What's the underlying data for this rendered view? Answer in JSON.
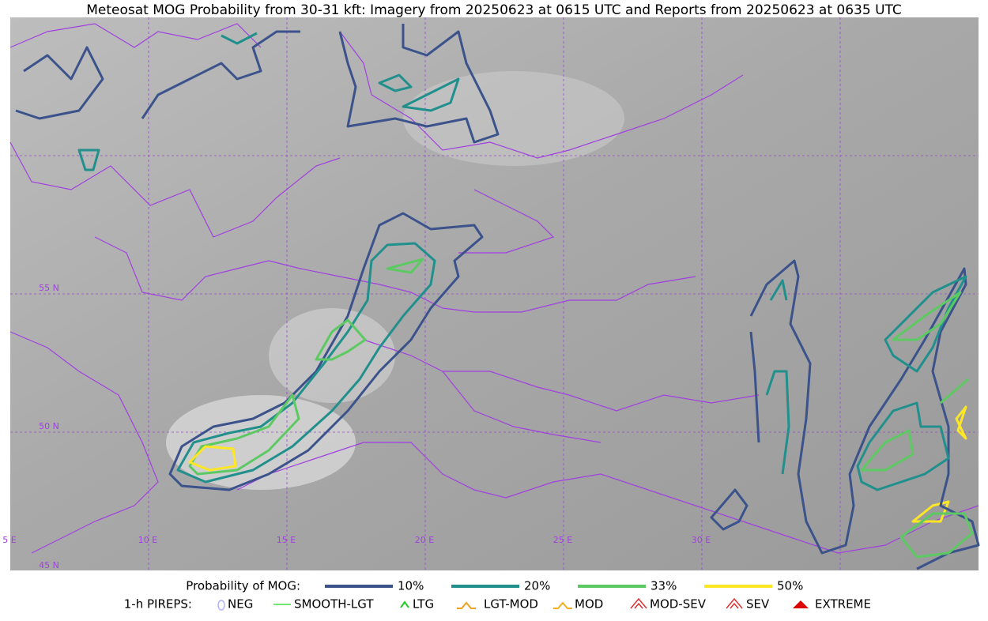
{
  "title": "Meteosat MOG Probability from 30-31 kft: Imagery from 20250623 at 0615 UTC and Reports from 20250623 at 0635 UTC",
  "map": {
    "lat_labels": [
      "55 N",
      "50 N",
      "45 N"
    ],
    "lon_labels": [
      "5 E",
      "10 E",
      "15 E",
      "20 E",
      "25 E",
      "30 E"
    ]
  },
  "legend": {
    "probability_title": "Probability of MOG:",
    "levels": [
      {
        "label": "10%",
        "color": "#3b528b"
      },
      {
        "label": "20%",
        "color": "#21908d"
      },
      {
        "label": "33%",
        "color": "#5dc963"
      },
      {
        "label": "50%",
        "color": "#fde725"
      }
    ],
    "pireps_title": "1-h PIREPS:",
    "pireps": [
      {
        "label": "NEG",
        "color": "#b0b0ff"
      },
      {
        "label": "SMOOTH-LGT",
        "color": "#44dd44"
      },
      {
        "label": "LTG",
        "color": "#22cc22"
      },
      {
        "label": "LGT-MOD",
        "color": "#f0a020"
      },
      {
        "label": "MOD",
        "color": "#f0b020"
      },
      {
        "label": "MOD-SEV",
        "color": "#e03030"
      },
      {
        "label": "SEV",
        "color": "#e03030"
      },
      {
        "label": "EXTREME",
        "color": "#dd0000"
      }
    ]
  }
}
